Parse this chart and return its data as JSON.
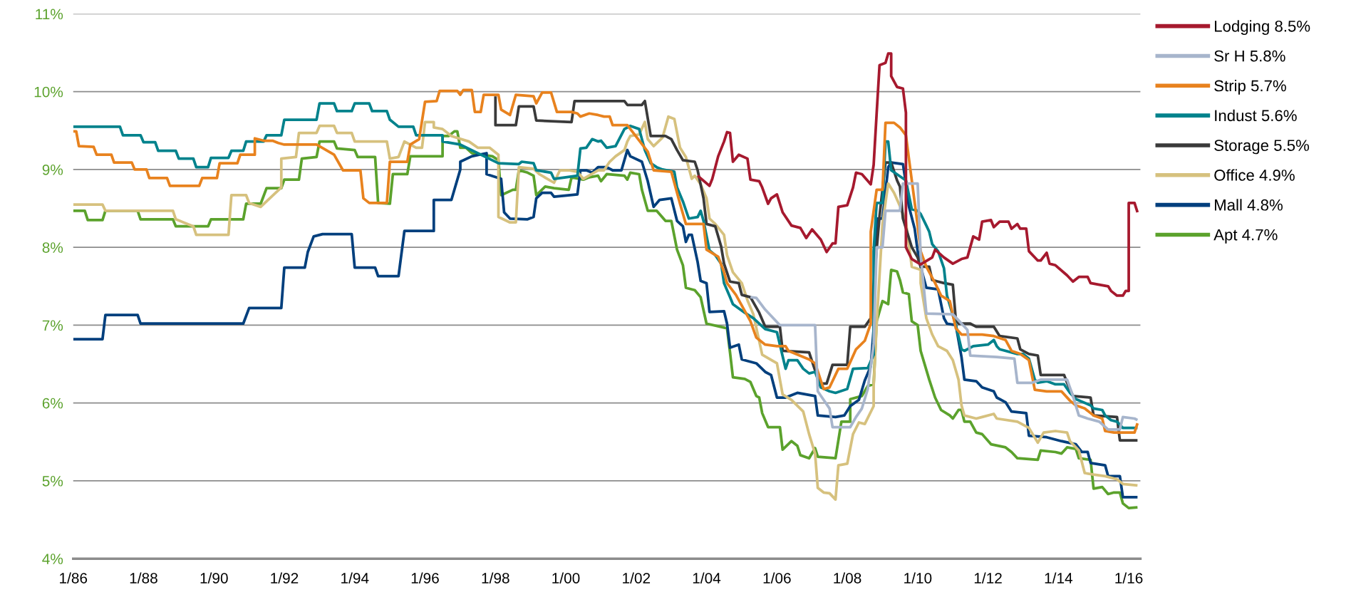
{
  "chart_data": {
    "type": "line",
    "xlim": [
      "1986-01",
      "2016-05"
    ],
    "ylim": [
      4,
      11
    ],
    "xticks": [
      {
        "value": "1986-01",
        "label": "1/86"
      },
      {
        "value": "1988-01",
        "label": "1/88"
      },
      {
        "value": "1990-01",
        "label": "1/90"
      },
      {
        "value": "1992-01",
        "label": "1/92"
      },
      {
        "value": "1994-01",
        "label": "1/94"
      },
      {
        "value": "1996-01",
        "label": "1/96"
      },
      {
        "value": "1998-01",
        "label": "1/98"
      },
      {
        "value": "2000-01",
        "label": "1/00"
      },
      {
        "value": "2002-01",
        "label": "1/02"
      },
      {
        "value": "2004-01",
        "label": "1/04"
      },
      {
        "value": "2006-01",
        "label": "1/06"
      },
      {
        "value": "2008-01",
        "label": "1/08"
      },
      {
        "value": "2010-01",
        "label": "1/10"
      },
      {
        "value": "2012-01",
        "label": "1/12"
      },
      {
        "value": "2014-01",
        "label": "1/14"
      },
      {
        "value": "2016-01",
        "label": "1/16"
      }
    ],
    "yticks": [
      {
        "value": 4,
        "label": "4%"
      },
      {
        "value": 5,
        "label": "5%"
      },
      {
        "value": 6,
        "label": "6%"
      },
      {
        "value": 7,
        "label": "7%"
      },
      {
        "value": 8,
        "label": "8%"
      },
      {
        "value": 9,
        "label": "9%"
      },
      {
        "value": 10,
        "label": "10%"
      },
      {
        "value": 11,
        "label": "11%"
      }
    ],
    "grid": "y",
    "legend": "right",
    "series": [
      {
        "name": "Lodging 8.5%",
        "color": "#a6192e",
        "x": [
          "2003-10",
          "2004-02",
          "2004-03",
          "2004-05",
          "2004-07",
          "2004-08",
          "2004-09",
          "2004-10",
          "2004-12",
          "2005-03",
          "2005-04",
          "2005-07",
          "2005-08",
          "2005-10",
          "2005-11",
          "2006-01",
          "2006-03",
          "2006-06",
          "2006-09",
          "2006-11",
          "2007-01",
          "2007-04",
          "2007-06",
          "2007-08",
          "2007-09",
          "2007-10",
          "2008-01",
          "2008-03",
          "2008-04",
          "2008-06",
          "2008-09",
          "2008-10",
          "2008-11",
          "2008-12",
          "2009-02",
          "2009-03",
          "2009-04",
          "2009-04",
          "2009-06",
          "2009-08",
          "2009-09",
          "2009-09",
          "2009-11",
          "2010-02",
          "2010-06",
          "2010-07",
          "2010-10",
          "2011-01",
          "2011-04",
          "2011-06",
          "2011-08",
          "2011-10",
          "2011-11",
          "2012-02",
          "2012-03",
          "2012-05",
          "2012-08",
          "2012-09",
          "2012-11",
          "2012-12",
          "2013-02",
          "2013-03",
          "2013-06",
          "2013-07",
          "2013-09",
          "2013-10",
          "2013-12",
          "2014-04",
          "2014-06",
          "2014-08",
          "2014-11",
          "2014-12",
          "2015-03",
          "2015-06",
          "2015-07",
          "2015-09",
          "2015-11",
          "2015-12",
          "2016-01",
          "2016-01",
          "2016-03",
          "2016-04"
        ],
        "values": [
          8.92,
          8.79,
          8.88,
          9.17,
          9.36,
          9.48,
          9.47,
          9.1,
          9.19,
          9.14,
          8.87,
          8.85,
          8.77,
          8.56,
          8.63,
          8.68,
          8.45,
          8.28,
          8.25,
          8.12,
          8.23,
          8.1,
          7.94,
          8.05,
          8.05,
          8.52,
          8.54,
          8.77,
          8.96,
          8.94,
          8.81,
          9.06,
          9.72,
          10.34,
          10.37,
          10.49,
          10.49,
          10.2,
          10.06,
          10.04,
          9.73,
          8.0,
          7.85,
          7.78,
          7.87,
          7.97,
          7.87,
          7.79,
          7.85,
          7.87,
          8.14,
          8.1,
          8.33,
          8.35,
          8.26,
          8.33,
          8.33,
          8.24,
          8.3,
          8.24,
          8.24,
          7.95,
          7.83,
          7.83,
          7.93,
          7.79,
          7.77,
          7.64,
          7.56,
          7.62,
          7.62,
          7.54,
          7.52,
          7.5,
          7.44,
          7.38,
          7.38,
          7.44,
          7.44,
          8.57,
          8.57,
          8.45
        ]
      },
      {
        "name": "Sr H 5.8%",
        "color": "#a7b5cc",
        "x": [
          "2005-04",
          "2005-06",
          "2005-09",
          "2006-02",
          "2007-02",
          "2007-03",
          "2007-05",
          "2007-07",
          "2007-08",
          "2008-02",
          "2008-04",
          "2008-06",
          "2008-08",
          "2008-10",
          "2008-11",
          "2009-01",
          "2009-02",
          "2009-07",
          "2009-08",
          "2010-01",
          "2010-02",
          "2010-04",
          "2011-01",
          "2011-06",
          "2011-07",
          "2012-04",
          "2012-10",
          "2012-11",
          "2013-04",
          "2013-07",
          "2014-04",
          "2014-06",
          "2014-08",
          "2014-11",
          "2015-03",
          "2015-06",
          "2015-10",
          "2015-11",
          "2016-03",
          "2016-04"
        ],
        "values": [
          7.36,
          7.35,
          7.2,
          7.0,
          7.0,
          6.15,
          6.04,
          5.93,
          5.69,
          5.69,
          5.82,
          5.93,
          6.18,
          6.76,
          8.0,
          8.0,
          8.47,
          8.47,
          8.82,
          8.82,
          7.9,
          7.15,
          7.14,
          6.94,
          6.61,
          6.59,
          6.57,
          6.26,
          6.26,
          6.3,
          6.3,
          6.09,
          5.84,
          5.8,
          5.76,
          5.66,
          5.66,
          5.82,
          5.8,
          5.78
        ]
      },
      {
        "name": "Strip 5.7%",
        "color": "#e8821e",
        "x": [
          "1986-01",
          "1986-02",
          "1986-03",
          "1986-08",
          "1986-09",
          "1987-02",
          "1987-03",
          "1987-09",
          "1987-10",
          "1988-02",
          "1988-03",
          "1988-09",
          "1988-10",
          "1989-08",
          "1989-09",
          "1990-02",
          "1990-03",
          "1990-09",
          "1990-10",
          "1991-03",
          "1991-03",
          "1991-06",
          "1991-09",
          "1991-11",
          "1992-01",
          "1992-12",
          "1993-06",
          "1993-09",
          "1994-03",
          "1994-04",
          "1994-06",
          "1994-12",
          "1995-01",
          "1995-07",
          "1995-08",
          "1995-11",
          "1996-01",
          "1996-05",
          "1996-06",
          "1996-12",
          "1997-01",
          "1997-02",
          "1997-05",
          "1997-06",
          "1997-08",
          "1997-09",
          "1998-02",
          "1998-03",
          "1998-06",
          "1998-08",
          "1999-02",
          "1999-03",
          "1999-05",
          "1999-08",
          "1999-10",
          "2000-03",
          "2000-05",
          "2000-06",
          "2000-09",
          "2000-12",
          "2001-02",
          "2001-04",
          "2001-05",
          "2001-10",
          "2002-05",
          "2002-07",
          "2003-01",
          "2003-04",
          "2003-06",
          "2003-11",
          "2003-12",
          "2004-01",
          "2004-05",
          "2004-07",
          "2004-08",
          "2004-11",
          "2005-04",
          "2005-06",
          "2005-09",
          "2006-01",
          "2006-04",
          "2006-05",
          "2006-12",
          "2007-02",
          "2007-05",
          "2007-07",
          "2007-10",
          "2008-01",
          "2008-04",
          "2008-07",
          "2008-09",
          "2008-09",
          "2008-11",
          "2009-01",
          "2009-02",
          "2009-05",
          "2009-07",
          "2009-09",
          "2009-10",
          "2009-11",
          "2010-01",
          "2010-02",
          "2010-04",
          "2010-07",
          "2010-09",
          "2010-12",
          "2011-02",
          "2011-04",
          "2011-11",
          "2012-03",
          "2012-07",
          "2012-09",
          "2012-12",
          "2013-03",
          "2013-05",
          "2013-09",
          "2014-02",
          "2014-05",
          "2014-07",
          "2014-10",
          "2015-01",
          "2015-04",
          "2015-05",
          "2015-08",
          "2016-03",
          "2016-04"
        ],
        "values": [
          9.49,
          9.49,
          9.3,
          9.29,
          9.19,
          9.19,
          9.09,
          9.09,
          9.0,
          9.0,
          8.89,
          8.89,
          8.79,
          8.79,
          8.89,
          8.89,
          9.08,
          9.08,
          9.19,
          9.19,
          9.4,
          9.37,
          9.37,
          9.34,
          9.32,
          9.32,
          9.19,
          8.99,
          8.99,
          8.63,
          8.57,
          8.57,
          9.1,
          9.1,
          9.32,
          9.39,
          9.87,
          9.88,
          10.01,
          10.01,
          9.96,
          10.02,
          10.02,
          9.74,
          9.74,
          9.96,
          9.96,
          9.77,
          9.7,
          9.96,
          9.94,
          9.85,
          9.99,
          9.99,
          9.74,
          9.74,
          9.72,
          9.68,
          9.72,
          9.7,
          9.68,
          9.68,
          9.57,
          9.57,
          9.23,
          8.99,
          8.97,
          8.56,
          8.3,
          8.3,
          8.3,
          7.97,
          7.88,
          7.68,
          7.54,
          7.39,
          7.05,
          6.84,
          6.75,
          6.73,
          6.73,
          6.67,
          6.56,
          6.51,
          6.18,
          6.2,
          6.44,
          6.44,
          6.69,
          6.8,
          7.02,
          8.2,
          8.74,
          8.74,
          9.6,
          9.6,
          9.54,
          9.44,
          9.15,
          8.86,
          8.28,
          7.95,
          7.75,
          7.54,
          7.38,
          7.31,
          6.96,
          6.88,
          6.88,
          6.86,
          6.81,
          6.67,
          6.63,
          6.55,
          6.17,
          6.15,
          6.15,
          6.03,
          5.97,
          5.93,
          5.84,
          5.8,
          5.64,
          5.62,
          5.62,
          5.74
        ]
      },
      {
        "name": "Indust 5.6%",
        "color": "#00828c",
        "x": [
          "1986-01",
          "1987-05",
          "1987-06",
          "1987-12",
          "1988-01",
          "1988-05",
          "1988-06",
          "1988-12",
          "1989-01",
          "1989-06",
          "1989-07",
          "1989-11",
          "1989-12",
          "1990-06",
          "1990-07",
          "1990-11",
          "1990-12",
          "1991-06",
          "1991-07",
          "1991-12",
          "1992-01",
          "1992-12",
          "1993-01",
          "1993-06",
          "1993-07",
          "1993-12",
          "1994-01",
          "1994-06",
          "1994-07",
          "1994-12",
          "1995-01",
          "1995-04",
          "1995-09",
          "1995-10",
          "1996-07",
          "1996-07",
          "1997-01",
          "1998-02",
          "1998-09",
          "1998-10",
          "1999-02",
          "1999-03",
          "1999-08",
          "1999-09",
          "2000-05",
          "2000-06",
          "2000-08",
          "2000-10",
          "2000-12",
          "2001-01",
          "2001-03",
          "2001-06",
          "2001-09",
          "2001-11",
          "2002-02",
          "2002-04",
          "2002-06",
          "2002-08",
          "2002-10",
          "2003-02",
          "2003-03",
          "2003-05",
          "2003-07",
          "2003-10",
          "2003-11",
          "2003-12",
          "2004-02",
          "2004-04",
          "2004-06",
          "2004-07",
          "2004-09",
          "2004-10",
          "2005-02",
          "2005-05",
          "2005-09",
          "2006-01",
          "2006-04",
          "2006-05",
          "2006-08",
          "2006-10",
          "2006-12",
          "2007-02",
          "2007-04",
          "2007-07",
          "2007-09",
          "2008-01",
          "2008-03",
          "2008-08",
          "2008-10",
          "2008-10",
          "2008-11",
          "2009-01",
          "2009-02",
          "2009-03",
          "2009-04",
          "2009-09",
          "2009-11",
          "2010-01",
          "2010-02",
          "2010-04",
          "2010-05",
          "2010-06",
          "2010-08",
          "2010-10",
          "2010-11",
          "2011-02",
          "2011-04",
          "2011-05",
          "2011-08",
          "2012-01",
          "2012-03",
          "2012-04",
          "2012-05",
          "2012-11",
          "2013-01",
          "2013-03",
          "2013-05",
          "2013-06",
          "2013-09",
          "2013-12",
          "2014-03",
          "2014-05",
          "2014-07",
          "2014-12",
          "2015-01",
          "2015-04",
          "2015-05",
          "2015-07",
          "2015-09",
          "2015-11",
          "2016-04"
        ],
        "values": [
          9.55,
          9.55,
          9.44,
          9.44,
          9.35,
          9.35,
          9.24,
          9.24,
          9.14,
          9.14,
          9.03,
          9.03,
          9.15,
          9.15,
          9.24,
          9.24,
          9.36,
          9.36,
          9.44,
          9.44,
          9.64,
          9.64,
          9.85,
          9.85,
          9.75,
          9.75,
          9.85,
          9.85,
          9.75,
          9.75,
          9.64,
          9.55,
          9.55,
          9.44,
          9.44,
          9.36,
          9.32,
          9.08,
          9.07,
          9.1,
          9.08,
          8.99,
          8.96,
          8.88,
          8.92,
          9.27,
          9.28,
          9.39,
          9.36,
          9.37,
          9.28,
          9.3,
          9.52,
          9.56,
          9.52,
          9.25,
          9.08,
          9.03,
          9.0,
          8.97,
          8.77,
          8.59,
          8.37,
          8.39,
          8.47,
          8.34,
          7.96,
          7.9,
          7.79,
          7.54,
          7.36,
          7.27,
          7.16,
          7.09,
          6.95,
          6.91,
          6.44,
          6.55,
          6.55,
          6.44,
          6.38,
          6.4,
          6.2,
          6.15,
          6.13,
          6.18,
          6.44,
          6.45,
          6.62,
          7.95,
          8.57,
          8.57,
          9.36,
          9.36,
          8.99,
          8.86,
          8.49,
          8.47,
          8.43,
          8.28,
          8.2,
          8.04,
          7.95,
          7.73,
          7.38,
          7.0,
          6.69,
          6.67,
          6.73,
          6.75,
          6.81,
          6.73,
          6.69,
          6.63,
          6.63,
          6.57,
          6.3,
          6.26,
          6.28,
          6.24,
          6.24,
          6.13,
          6.05,
          5.97,
          5.93,
          5.91,
          5.84,
          5.78,
          5.76,
          5.68,
          5.68
        ]
      },
      {
        "name": "Storage 5.5%",
        "color": "#3a3a3a",
        "x": [
          "1998-01",
          "1998-01",
          "1998-08",
          "1998-09",
          "1999-02",
          "1999-03",
          "2000-03",
          "2000-04",
          "2001-09",
          "2001-10",
          "2002-03",
          "2002-04",
          "2002-06",
          "2002-11",
          "2003-01",
          "2003-03",
          "2003-05",
          "2003-09",
          "2003-10",
          "2003-12",
          "2004-01",
          "2004-04",
          "2004-06",
          "2004-07",
          "2004-09",
          "2004-12",
          "2005-01",
          "2005-04",
          "2005-07",
          "2005-09",
          "2006-02",
          "2006-03",
          "2006-12",
          "2007-02",
          "2007-04",
          "2007-06",
          "2007-08",
          "2008-01",
          "2008-02",
          "2008-07",
          "2008-09",
          "2008-12",
          "2009-02",
          "2009-04",
          "2009-06",
          "2009-07",
          "2009-08",
          "2009-11",
          "2010-01",
          "2010-02",
          "2010-05",
          "2010-06",
          "2010-08",
          "2010-10",
          "2011-01",
          "2011-02",
          "2011-03",
          "2011-07",
          "2011-09",
          "2012-03",
          "2012-05",
          "2012-11",
          "2012-12",
          "2013-03",
          "2013-06",
          "2013-07",
          "2014-03",
          "2014-04",
          "2014-06",
          "2014-12",
          "2015-01",
          "2015-09",
          "2015-10",
          "2016-04"
        ],
        "values": [
          9.94,
          9.57,
          9.57,
          9.81,
          9.81,
          9.63,
          9.61,
          9.88,
          9.88,
          9.83,
          9.83,
          9.88,
          9.43,
          9.43,
          9.39,
          9.25,
          9.12,
          9.1,
          8.99,
          8.63,
          8.3,
          8.27,
          8.01,
          7.79,
          7.56,
          7.54,
          7.39,
          7.36,
          7.16,
          6.98,
          6.98,
          6.67,
          6.65,
          6.42,
          6.25,
          6.25,
          6.49,
          6.49,
          6.98,
          6.98,
          7.09,
          8.4,
          9.09,
          9.09,
          8.86,
          8.78,
          8.37,
          8.0,
          7.87,
          7.75,
          7.75,
          7.58,
          7.56,
          7.54,
          7.52,
          7.07,
          7.02,
          7.02,
          6.98,
          6.98,
          6.86,
          6.83,
          6.69,
          6.63,
          6.61,
          6.36,
          6.36,
          6.26,
          6.09,
          6.07,
          5.84,
          5.82,
          5.52,
          5.52
        ]
      },
      {
        "name": "Office 4.9%",
        "color": "#d6c17e",
        "x": [
          "1986-01",
          "1986-11",
          "1986-12",
          "1988-11",
          "1988-12",
          "1989-06",
          "1989-07",
          "1990-06",
          "1990-07",
          "1990-12",
          "1991-01",
          "1991-05",
          "1991-12",
          "1991-12",
          "1992-05",
          "1992-06",
          "1992-12",
          "1993-01",
          "1993-06",
          "1993-07",
          "1993-12",
          "1994-01",
          "1994-12",
          "1995-01",
          "1995-04",
          "1995-06",
          "1995-10",
          "1995-12",
          "1996-01",
          "1996-04",
          "1996-04",
          "1996-07",
          "1996-10",
          "1997-04",
          "1997-07",
          "1997-11",
          "1998-02",
          "1998-02",
          "1998-06",
          "1998-08",
          "1998-09",
          "1999-02",
          "1999-04",
          "1999-09",
          "1999-11",
          "2000-02",
          "2000-05",
          "2000-07",
          "2000-12",
          "2001-02",
          "2001-04",
          "2001-06",
          "2001-09",
          "2001-10",
          "2001-11",
          "2002-02",
          "2002-04",
          "2002-05",
          "2002-07",
          "2002-10",
          "2002-12",
          "2003-02",
          "2003-04",
          "2003-06",
          "2003-08",
          "2003-09",
          "2003-11",
          "2004-01",
          "2004-02",
          "2004-04",
          "2004-07",
          "2004-08",
          "2004-10",
          "2005-01",
          "2005-03",
          "2005-05",
          "2005-08",
          "2006-01",
          "2006-03",
          "2006-06",
          "2006-10",
          "2006-12",
          "2007-02",
          "2007-03",
          "2007-05",
          "2007-07",
          "2007-09",
          "2007-10",
          "2008-01",
          "2008-03",
          "2008-05",
          "2008-07",
          "2008-10",
          "2008-10",
          "2008-11",
          "2009-01",
          "2009-03",
          "2009-05",
          "2009-07",
          "2009-09",
          "2009-10",
          "2009-11",
          "2010-02",
          "2010-02",
          "2010-04",
          "2010-06",
          "2010-08",
          "2010-11",
          "2011-01",
          "2011-03",
          "2011-04",
          "2011-05",
          "2011-09",
          "2011-11",
          "2012-03",
          "2012-04",
          "2012-11",
          "2013-03",
          "2013-06",
          "2013-08",
          "2013-12",
          "2014-04",
          "2014-05",
          "2014-08",
          "2014-10",
          "2015-01",
          "2015-05",
          "2015-09",
          "2015-11",
          "2016-04"
        ],
        "values": [
          8.55,
          8.55,
          8.47,
          8.47,
          8.36,
          8.27,
          8.16,
          8.16,
          8.67,
          8.67,
          8.57,
          8.52,
          8.77,
          9.14,
          9.16,
          9.47,
          9.47,
          9.56,
          9.56,
          9.47,
          9.47,
          9.36,
          9.36,
          9.14,
          9.16,
          9.36,
          9.28,
          9.28,
          9.61,
          9.61,
          9.54,
          9.52,
          9.43,
          9.36,
          9.28,
          9.28,
          9.19,
          8.39,
          8.32,
          8.32,
          9.03,
          9.01,
          8.94,
          8.83,
          8.99,
          8.99,
          8.97,
          8.88,
          8.99,
          8.99,
          9.1,
          9.17,
          9.25,
          9.36,
          9.43,
          9.45,
          9.61,
          9.39,
          9.3,
          9.41,
          9.68,
          9.65,
          9.28,
          9.16,
          8.88,
          8.92,
          8.81,
          8.63,
          8.37,
          8.3,
          8.16,
          7.9,
          7.68,
          7.54,
          7.32,
          7.14,
          6.62,
          6.51,
          6.11,
          6.04,
          5.89,
          5.6,
          5.35,
          4.91,
          4.85,
          4.84,
          4.76,
          5.2,
          5.22,
          5.6,
          5.75,
          5.73,
          5.96,
          6.22,
          7.0,
          8.3,
          8.82,
          8.7,
          8.53,
          8.33,
          8.04,
          7.75,
          7.71,
          7.54,
          7.09,
          6.88,
          6.73,
          6.67,
          6.55,
          6.3,
          5.97,
          5.84,
          5.8,
          5.82,
          5.86,
          5.8,
          5.76,
          5.68,
          5.49,
          5.62,
          5.64,
          5.62,
          5.51,
          5.39,
          5.1,
          5.08,
          5.06,
          5.02,
          4.96,
          4.94
        ]
      },
      {
        "name": "Mall 4.8%",
        "color": "#003f7d",
        "x": [
          "1986-01",
          "1986-11",
          "1986-12",
          "1987-11",
          "1987-12",
          "1990-11",
          "1991-01",
          "1991-12",
          "1992-01",
          "1992-08",
          "1992-09",
          "1992-11",
          "1993-02",
          "1993-12",
          "1994-01",
          "1994-08",
          "1994-09",
          "1995-04",
          "1995-06",
          "1996-04",
          "1996-04",
          "1996-10",
          "1997-01",
          "1997-01",
          "1997-05",
          "1997-10",
          "1997-10",
          "1998-03",
          "1998-04",
          "1998-06",
          "1998-12",
          "1999-02",
          "1999-03",
          "1999-05",
          "1999-08",
          "1999-09",
          "2000-05",
          "2000-06",
          "2000-08",
          "2000-10",
          "2000-12",
          "2001-03",
          "2001-05",
          "2001-08",
          "2001-10",
          "2001-11",
          "2002-03",
          "2002-05",
          "2002-07",
          "2002-09",
          "2003-01",
          "2003-03",
          "2003-05",
          "2003-06",
          "2003-07",
          "2003-08",
          "2003-10",
          "2003-11",
          "2004-01",
          "2004-02",
          "2004-07",
          "2004-08",
          "2004-09",
          "2004-12",
          "2005-01",
          "2005-06",
          "2005-09",
          "2005-11",
          "2006-01",
          "2006-04",
          "2006-08",
          "2007-02",
          "2007-03",
          "2007-09",
          "2007-12",
          "2008-02",
          "2008-05",
          "2008-07",
          "2008-09",
          "2008-10",
          "2008-11",
          "2009-01",
          "2009-03",
          "2009-04",
          "2009-08",
          "2009-09",
          "2009-10",
          "2009-12",
          "2010-01",
          "2010-02",
          "2010-04",
          "2010-08",
          "2010-10",
          "2010-11",
          "2011-02",
          "2011-04",
          "2011-05",
          "2011-09",
          "2011-11",
          "2012-03",
          "2012-04",
          "2012-07",
          "2012-09",
          "2013-02",
          "2013-03",
          "2013-09",
          "2014-02",
          "2014-07",
          "2014-09",
          "2014-11",
          "2014-12",
          "2015-05",
          "2015-06",
          "2015-10",
          "2015-11",
          "2016-04"
        ],
        "values": [
          6.82,
          6.82,
          7.13,
          7.13,
          7.02,
          7.02,
          7.22,
          7.22,
          7.74,
          7.74,
          7.94,
          8.14,
          8.17,
          8.17,
          7.74,
          7.74,
          7.63,
          7.63,
          8.21,
          8.21,
          8.61,
          8.61,
          9.0,
          9.1,
          9.17,
          9.21,
          8.94,
          8.88,
          8.45,
          8.37,
          8.36,
          8.39,
          8.63,
          8.7,
          8.7,
          8.65,
          8.68,
          8.99,
          8.99,
          8.96,
          9.03,
          9.03,
          8.99,
          8.99,
          9.25,
          9.17,
          9.1,
          8.85,
          8.52,
          8.61,
          8.63,
          8.34,
          8.27,
          8.07,
          8.16,
          8.16,
          7.81,
          7.57,
          7.54,
          7.17,
          7.18,
          7.02,
          6.71,
          6.75,
          6.56,
          6.51,
          6.4,
          6.36,
          6.07,
          6.07,
          6.13,
          6.09,
          5.84,
          5.82,
          5.84,
          5.96,
          6.04,
          6.29,
          6.47,
          6.95,
          8.37,
          8.37,
          9.03,
          9.09,
          9.07,
          8.82,
          8.53,
          8.24,
          7.95,
          7.75,
          7.48,
          7.46,
          7.09,
          7.02,
          7.0,
          6.59,
          6.3,
          6.28,
          6.2,
          6.15,
          6.07,
          6.01,
          5.89,
          5.87,
          5.58,
          5.56,
          5.51,
          5.47,
          5.37,
          5.37,
          5.23,
          5.2,
          5.06,
          5.06,
          4.79,
          4.79
        ]
      },
      {
        "name": "Apt 4.7%",
        "color": "#5ba22c",
        "x": [
          "1986-01",
          "1986-05",
          "1986-06",
          "1986-11",
          "1986-12",
          "1987-11",
          "1987-12",
          "1988-11",
          "1988-12",
          "1989-11",
          "1989-12",
          "1990-11",
          "1990-12",
          "1991-05",
          "1991-07",
          "1991-12",
          "1992-01",
          "1992-06",
          "1992-07",
          "1992-12",
          "1993-01",
          "1993-06",
          "1993-07",
          "1994-01",
          "1994-02",
          "1994-08",
          "1994-09",
          "1995-01",
          "1995-02",
          "1995-07",
          "1995-08",
          "1996-07",
          "1996-07",
          "1996-09",
          "1996-11",
          "1996-12",
          "1997-01",
          "1997-03",
          "1997-05",
          "1997-12",
          "1998-02",
          "1998-03",
          "1998-07",
          "1998-08",
          "1998-09",
          "1998-12",
          "1999-02",
          "1999-03",
          "1999-06",
          "1999-09",
          "2000-02",
          "2000-03",
          "2000-07",
          "2000-09",
          "2000-12",
          "2001-01",
          "2001-03",
          "2001-09",
          "2001-10",
          "2001-11",
          "2002-02",
          "2002-03",
          "2002-05",
          "2002-08",
          "2002-11",
          "2003-01",
          "2003-03",
          "2003-05",
          "2003-06",
          "2003-09",
          "2003-11",
          "2004-01",
          "2004-08",
          "2004-09",
          "2004-10",
          "2005-02",
          "2005-04",
          "2005-06",
          "2005-07",
          "2005-08",
          "2005-10",
          "2006-02",
          "2006-03",
          "2006-06",
          "2006-08",
          "2006-09",
          "2006-12",
          "2007-02",
          "2007-03",
          "2007-09",
          "2007-11",
          "2008-02",
          "2008-02",
          "2008-06",
          "2008-08",
          "2008-10",
          "2008-11",
          "2009-01",
          "2009-03",
          "2009-04",
          "2009-06",
          "2009-07",
          "2009-08",
          "2009-10",
          "2009-11",
          "2010-01",
          "2010-02",
          "2010-05",
          "2010-07",
          "2010-09",
          "2010-12",
          "2011-01",
          "2011-03",
          "2011-04",
          "2011-05",
          "2011-07",
          "2011-09",
          "2011-11",
          "2012-02",
          "2012-07",
          "2012-09",
          "2012-11",
          "2013-06",
          "2013-07",
          "2013-12",
          "2014-02",
          "2014-04",
          "2014-07",
          "2014-08",
          "2014-12",
          "2015-01",
          "2015-04",
          "2015-06",
          "2015-08",
          "2015-10",
          "2015-11",
          "2016-01",
          "2016-04"
        ],
        "values": [
          8.47,
          8.47,
          8.35,
          8.35,
          8.47,
          8.47,
          8.36,
          8.36,
          8.27,
          8.27,
          8.36,
          8.36,
          8.56,
          8.56,
          8.76,
          8.76,
          8.87,
          8.87,
          9.14,
          9.16,
          9.36,
          9.36,
          9.27,
          9.25,
          9.16,
          9.16,
          8.57,
          8.56,
          8.94,
          8.94,
          9.17,
          9.17,
          9.43,
          9.43,
          9.49,
          9.49,
          9.28,
          9.28,
          9.21,
          9.17,
          9.12,
          8.67,
          8.74,
          8.74,
          8.99,
          8.96,
          8.92,
          8.67,
          8.78,
          8.76,
          8.74,
          8.9,
          8.87,
          8.9,
          8.92,
          8.85,
          8.94,
          8.92,
          8.87,
          8.96,
          8.94,
          8.74,
          8.47,
          8.47,
          8.34,
          8.34,
          7.97,
          7.77,
          7.48,
          7.45,
          7.36,
          7.02,
          6.96,
          6.65,
          6.33,
          6.31,
          6.27,
          6.09,
          6.07,
          5.87,
          5.69,
          5.69,
          5.4,
          5.51,
          5.45,
          5.33,
          5.29,
          5.42,
          5.31,
          5.29,
          5.76,
          5.76,
          6.05,
          6.09,
          6.22,
          6.24,
          7.05,
          7.31,
          7.27,
          7.71,
          7.69,
          7.58,
          7.42,
          7.4,
          7.05,
          7.0,
          6.67,
          6.3,
          6.07,
          5.91,
          5.84,
          5.8,
          5.91,
          5.91,
          5.76,
          5.76,
          5.62,
          5.6,
          5.47,
          5.43,
          5.37,
          5.29,
          5.27,
          5.39,
          5.37,
          5.35,
          5.43,
          5.41,
          5.29,
          5.27,
          4.9,
          4.92,
          4.83,
          4.85,
          4.85,
          4.71,
          4.65,
          4.66
        ]
      }
    ]
  }
}
